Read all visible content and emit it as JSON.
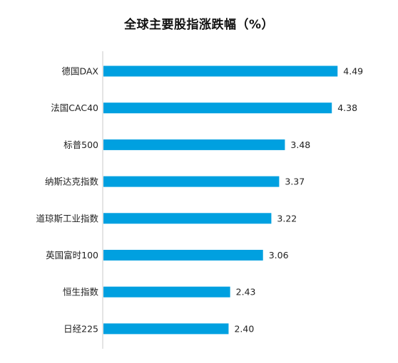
{
  "chart_data": {
    "type": "bar",
    "orientation": "horizontal",
    "title": "全球主要股指涨跌幅（%）",
    "xlabel": "",
    "ylabel": "",
    "categories": [
      "德国DAX",
      "法国CAC40",
      "标普500",
      "纳斯达克指数",
      "道琼斯工业指数",
      "英国富时100",
      "恒生指数",
      "日经225"
    ],
    "values": [
      4.49,
      4.38,
      3.48,
      3.37,
      3.22,
      3.06,
      2.43,
      2.4
    ],
    "value_labels": [
      "4.49",
      "4.38",
      "3.48",
      "3.37",
      "3.22",
      "3.06",
      "2.43",
      "2.40"
    ],
    "xlim": [
      0,
      4.5
    ],
    "grid": false,
    "legend": "none",
    "bar_color": "#00a0e0",
    "axis_color": "#c8c8c8"
  }
}
